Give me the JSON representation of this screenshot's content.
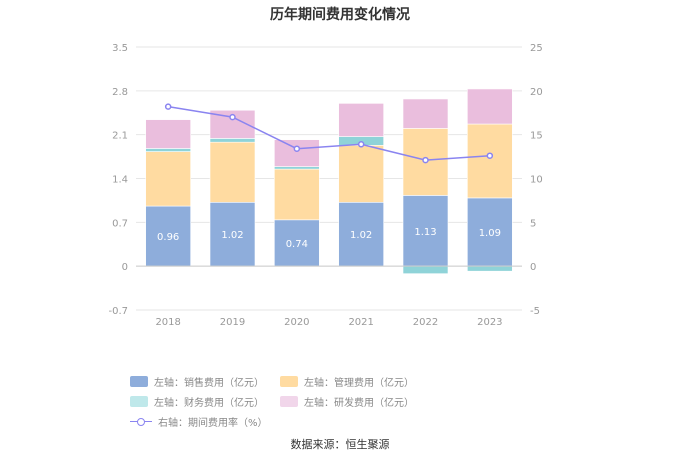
{
  "chart_data": {
    "type": "bar",
    "title": "历年期间费用变化情况",
    "categories": [
      "2018",
      "2019",
      "2020",
      "2021",
      "2022",
      "2023"
    ],
    "stacked": true,
    "left_axis": {
      "ylim": [
        -0.7,
        3.5
      ],
      "ticks": [
        "-0.7",
        "0",
        "0.7",
        "1.4",
        "2.1",
        "2.8",
        "3.5"
      ]
    },
    "right_axis": {
      "ylim": [
        -5,
        25
      ],
      "ticks": [
        "-5",
        "0",
        "5",
        "10",
        "15",
        "20",
        "25"
      ]
    },
    "series": [
      {
        "name": "左轴：销售费用（亿元）",
        "type": "bar",
        "axis": "left",
        "color": "#8eaddb",
        "values": [
          0.96,
          1.02,
          0.74,
          1.02,
          1.13,
          1.09
        ],
        "labels": [
          "0.96",
          "1.02",
          "0.74",
          "1.02",
          "1.13",
          "1.09"
        ]
      },
      {
        "name": "左轴：管理费用（亿元）",
        "type": "bar",
        "axis": "left",
        "color": "#ffdba1",
        "values": [
          0.87,
          0.96,
          0.81,
          0.91,
          1.07,
          1.18
        ]
      },
      {
        "name": "左轴：财务费用（亿元）",
        "type": "bar",
        "axis": "left",
        "color": "#8fd3d8",
        "values": [
          0.05,
          0.06,
          0.04,
          0.14,
          -0.12,
          -0.08
        ]
      },
      {
        "name": "左轴：研发费用（亿元）",
        "type": "bar",
        "axis": "left",
        "color": "#eabedd",
        "values": [
          0.46,
          0.45,
          0.43,
          0.53,
          0.47,
          0.56
        ]
      },
      {
        "name": "右轴：期间费用率（%）",
        "type": "line",
        "axis": "right",
        "color": "#8a84f0",
        "values": [
          18.2,
          17.0,
          13.4,
          13.9,
          12.1,
          12.6
        ]
      }
    ],
    "grid": true,
    "legend_position": "bottom"
  },
  "source": "数据来源：恒生聚源"
}
